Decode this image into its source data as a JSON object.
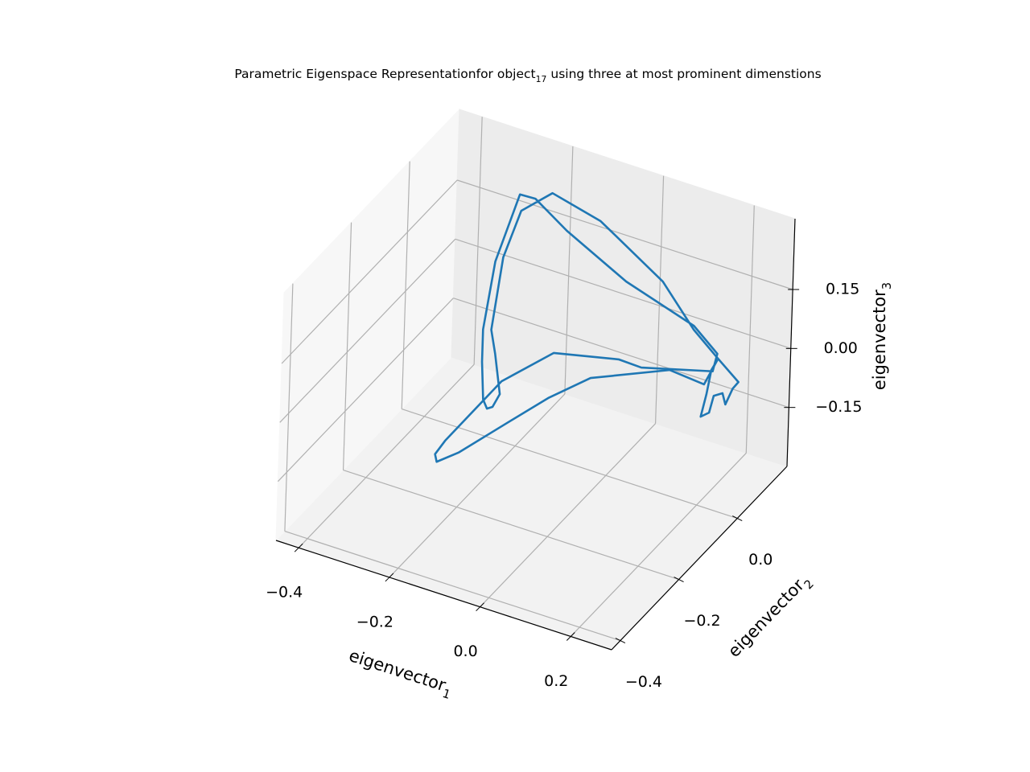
{
  "chart_data": {
    "type": "line3d",
    "title": [
      "Parametric Eigenspace Representationfor object",
      "17",
      " using three at most prominent dimenstions"
    ],
    "xlabel": [
      "eigenvector",
      "1"
    ],
    "ylabel": [
      "eigenvector",
      "2"
    ],
    "zlabel": [
      "eigenvector",
      "3"
    ],
    "color": "#1f77b4",
    "grid": true,
    "xlim": [
      -0.45,
      0.29
    ],
    "ylim": [
      -0.43,
      0.17
    ],
    "zlim": [
      -0.3,
      0.33
    ],
    "xticks": [
      {
        "value": -0.4,
        "label": "−0.4"
      },
      {
        "value": -0.2,
        "label": "−0.2"
      },
      {
        "value": 0,
        "label": "0.0"
      },
      0.2
    ],
    "yticks": [
      {
        "value": -0.4,
        "label": "−0.4"
      },
      {
        "value": -0.2,
        "label": "−0.2"
      },
      {
        "value": 0,
        "label": "0.0"
      }
    ],
    "zticks": [
      {
        "value": -0.15,
        "label": "−0.15"
      },
      {
        "value": 0,
        "label": "0.00"
      },
      0.15
    ],
    "x": [
      -0.169,
      -0.216,
      -0.22,
      -0.199,
      -0.08,
      -0.042,
      0.1,
      0.15,
      0.232,
      0.241,
      0.188,
      0.037,
      -0.17,
      -0.241,
      -0.275,
      -0.324,
      -0.272,
      -0.124,
      -0.119,
      -0.11,
      -0.098,
      -0.083,
      -0.096,
      -0.254,
      -0.307,
      -0.271,
      -0.204,
      -0.097,
      0.117,
      0.188,
      0.241,
      0.289,
      0.277,
      0.262,
      0.255,
      0.236,
      0.227,
      0.209,
      0.22,
      0.229,
      0.241,
      0.214,
      0.138,
      0.04,
      0.023,
      -0.071,
      -0.169
    ],
    "y": [
      -0.25,
      -0.25,
      -0.25,
      -0.25,
      -0.25,
      -0.13,
      -0.13,
      -0.13,
      -0.01,
      -0.01,
      -0.01,
      -0.01,
      0.11,
      0.11,
      0.11,
      0.11,
      -0.01,
      -0.25,
      -0.25,
      -0.25,
      -0.25,
      -0.25,
      -0.25,
      -0.01,
      0.11,
      0.11,
      0.11,
      0.11,
      -0.01,
      -0.01,
      -0.01,
      -0.01,
      -0.01,
      -0.01,
      -0.01,
      -0.01,
      -0.01,
      -0.01,
      -0.01,
      -0.01,
      -0.01,
      -0.01,
      -0.01,
      -0.13,
      -0.25,
      -0.25,
      -0.25
    ],
    "z": [
      -0.111,
      -0.152,
      -0.134,
      -0.092,
      0.104,
      0.097,
      0.134,
      0.132,
      0.06,
      0.108,
      0.159,
      0.215,
      0.173,
      0.228,
      0.226,
      0.037,
      -0.023,
      0.137,
      0.043,
      0.023,
      0.032,
      0.07,
      0.168,
      -0.017,
      0.054,
      0.186,
      0.256,
      0.225,
      0.245,
      0.149,
      0.098,
      0.054,
      0.033,
      -0.013,
      0.013,
      -0.001,
      -0.047,
      -0.064,
      -0.003,
      0.062,
      0.091,
      0.02,
      0.028,
      0.064,
      0.1,
      -0.003,
      -0.111
    ]
  }
}
